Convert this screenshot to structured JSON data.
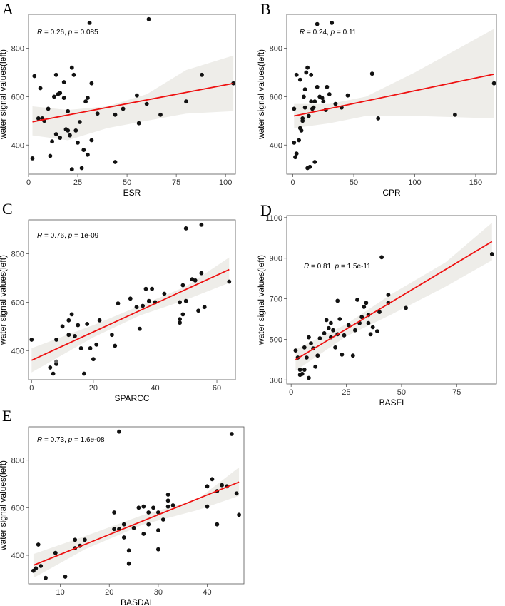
{
  "colors": {
    "line": "#ee1111",
    "band": "#eeede9",
    "point": "#111111",
    "point_overlap": "#666666",
    "axis": "#555555"
  },
  "chart_data": [
    {
      "panel": "A",
      "type": "scatter",
      "xlabel": "ESR",
      "ylabel": "water signal values(left)",
      "r_label": "R",
      "r_value": "0.26",
      "p_label": "p",
      "p_value": "0.085",
      "xlim": [
        0,
        105
      ],
      "ylim": [
        280,
        940
      ],
      "xticks": [
        0,
        25,
        50,
        75,
        100
      ],
      "xtick_labels": [
        "0",
        "25",
        "50",
        "75",
        "100"
      ],
      "yticks": [
        400,
        600,
        800
      ],
      "ytick_labels": [
        "400",
        "600",
        "800"
      ],
      "fit": {
        "x": [
          2,
          104
        ],
        "y": [
          496,
          655
        ]
      },
      "band_upper": [
        [
          2,
          560
        ],
        [
          20,
          545
        ],
        [
          40,
          560
        ],
        [
          60,
          610
        ],
        [
          80,
          710
        ],
        [
          104,
          770
        ]
      ],
      "band_lower": [
        [
          104,
          540
        ],
        [
          80,
          530
        ],
        [
          60,
          500
        ],
        [
          40,
          470
        ],
        [
          20,
          420
        ],
        [
          2,
          440
        ]
      ],
      "points": [
        [
          2,
          345
        ],
        [
          3,
          685
        ],
        [
          5,
          510
        ],
        [
          6,
          635
        ],
        [
          7,
          510
        ],
        [
          8,
          500
        ],
        [
          10,
          550
        ],
        [
          11,
          355
        ],
        [
          12,
          415
        ],
        [
          13,
          600
        ],
        [
          14,
          690
        ],
        [
          14,
          445
        ],
        [
          15,
          610
        ],
        [
          16,
          615
        ],
        [
          16,
          430
        ],
        [
          18,
          595
        ],
        [
          18,
          660
        ],
        [
          19,
          465
        ],
        [
          20,
          460
        ],
        [
          20,
          540
        ],
        [
          21,
          440
        ],
        [
          22,
          300
        ],
        [
          22,
          720
        ],
        [
          23,
          690
        ],
        [
          24,
          460
        ],
        [
          25,
          410
        ],
        [
          26,
          495
        ],
        [
          27,
          305
        ],
        [
          28,
          380
        ],
        [
          29,
          580
        ],
        [
          30,
          360
        ],
        [
          30,
          595
        ],
        [
          31,
          905
        ],
        [
          32,
          420
        ],
        [
          32,
          655
        ],
        [
          35,
          530
        ],
        [
          44,
          330
        ],
        [
          44,
          525
        ],
        [
          48,
          550
        ],
        [
          55,
          605
        ],
        [
          56,
          490
        ],
        [
          60,
          570
        ],
        [
          61,
          920
        ],
        [
          67,
          525
        ],
        [
          80,
          580
        ],
        [
          88,
          690
        ],
        [
          104,
          655
        ]
      ]
    },
    {
      "panel": "B",
      "type": "scatter",
      "xlabel": "CPR",
      "ylabel": "water signal values(left)",
      "r_label": "R",
      "r_value": "0.24",
      "p_label": "p",
      "p_value": "0.11",
      "xlim": [
        -5,
        167
      ],
      "ylim": [
        280,
        940
      ],
      "xticks": [
        0,
        50,
        100,
        150
      ],
      "xtick_labels": [
        "0",
        "50",
        "100",
        "150"
      ],
      "yticks": [
        400,
        600,
        800
      ],
      "ytick_labels": [
        "400",
        "600",
        "800"
      ],
      "fit": {
        "x": [
          1,
          165
        ],
        "y": [
          520,
          693
        ]
      },
      "band_upper": [
        [
          1,
          570
        ],
        [
          30,
          570
        ],
        [
          60,
          600
        ],
        [
          100,
          700
        ],
        [
          165,
          880
        ]
      ],
      "band_lower": [
        [
          165,
          510
        ],
        [
          100,
          520
        ],
        [
          60,
          520
        ],
        [
          30,
          490
        ],
        [
          1,
          470
        ]
      ],
      "points": [
        [
          1,
          550
        ],
        [
          1,
          410
        ],
        [
          2,
          350
        ],
        [
          3,
          365
        ],
        [
          3,
          690
        ],
        [
          5,
          420
        ],
        [
          6,
          470
        ],
        [
          6,
          670
        ],
        [
          7,
          460
        ],
        [
          8,
          500
        ],
        [
          8,
          510
        ],
        [
          9,
          600
        ],
        [
          10,
          630
        ],
        [
          10,
          555
        ],
        [
          11,
          700
        ],
        [
          12,
          720
        ],
        [
          12,
          305
        ],
        [
          13,
          520
        ],
        [
          14,
          310
        ],
        [
          15,
          580
        ],
        [
          15,
          690
        ],
        [
          16,
          550
        ],
        [
          17,
          555
        ],
        [
          18,
          330
        ],
        [
          18,
          580
        ],
        [
          20,
          900
        ],
        [
          20,
          640
        ],
        [
          22,
          600
        ],
        [
          24,
          595
        ],
        [
          25,
          580
        ],
        [
          27,
          545
        ],
        [
          28,
          640
        ],
        [
          30,
          610
        ],
        [
          32,
          905
        ],
        [
          35,
          570
        ],
        [
          40,
          555
        ],
        [
          45,
          605
        ],
        [
          65,
          695
        ],
        [
          70,
          510
        ],
        [
          133,
          525
        ],
        [
          165,
          655
        ]
      ]
    },
    {
      "panel": "C",
      "type": "scatter",
      "xlabel": "SPARCC",
      "ylabel": "water signal values(left)",
      "r_label": "R",
      "r_value": "0.76",
      "p_label": "p",
      "p_value": "1e-09",
      "xlim": [
        -1,
        66
      ],
      "ylim": [
        280,
        940
      ],
      "xticks": [
        0,
        20,
        40,
        60
      ],
      "xtick_labels": [
        "0",
        "20",
        "40",
        "60"
      ],
      "yticks": [
        400,
        600,
        800
      ],
      "ytick_labels": [
        "400",
        "600",
        "800"
      ],
      "fit": {
        "x": [
          0,
          64
        ],
        "y": [
          360,
          735
        ]
      },
      "band_upper": [
        [
          0,
          410
        ],
        [
          20,
          505
        ],
        [
          35,
          585
        ],
        [
          50,
          665
        ],
        [
          64,
          785
        ]
      ],
      "band_lower": [
        [
          64,
          680
        ],
        [
          50,
          610
        ],
        [
          35,
          545
        ],
        [
          20,
          455
        ],
        [
          0,
          310
        ]
      ],
      "points": [
        [
          0,
          445
        ],
        [
          6,
          330
        ],
        [
          7,
          305
        ],
        [
          8,
          345
        ],
        [
          8,
          355
        ],
        [
          8,
          445
        ],
        [
          10,
          500
        ],
        [
          12,
          465
        ],
        [
          12,
          525
        ],
        [
          13,
          550
        ],
        [
          14,
          460
        ],
        [
          15,
          505
        ],
        [
          16,
          410
        ],
        [
          17,
          305
        ],
        [
          18,
          510
        ],
        [
          19,
          410
        ],
        [
          20,
          365
        ],
        [
          21,
          425
        ],
        [
          22,
          525
        ],
        [
          26,
          465
        ],
        [
          27,
          420
        ],
        [
          28,
          595
        ],
        [
          32,
          615
        ],
        [
          34,
          580
        ],
        [
          35,
          490
        ],
        [
          36,
          585
        ],
        [
          37,
          655
        ],
        [
          38,
          605
        ],
        [
          39,
          655
        ],
        [
          40,
          600
        ],
        [
          43,
          635
        ],
        [
          48,
          515
        ],
        [
          48,
          530
        ],
        [
          48,
          600
        ],
        [
          49,
          670
        ],
        [
          49,
          550
        ],
        [
          50,
          605
        ],
        [
          50,
          905
        ],
        [
          52,
          695
        ],
        [
          53,
          690
        ],
        [
          54,
          565
        ],
        [
          55,
          720
        ],
        [
          55,
          920
        ],
        [
          56,
          580
        ],
        [
          64,
          685
        ]
      ]
    },
    {
      "panel": "D",
      "type": "scatter",
      "xlabel": "BASFI",
      "ylabel": "water signal values(left)",
      "r_label": "R",
      "r_value": "0.81",
      "p_label": "p",
      "p_value": "1.5e-11",
      "xlim": [
        -2,
        93
      ],
      "ylim": [
        280,
        1110
      ],
      "xticks": [
        0,
        25,
        50,
        75
      ],
      "xtick_labels": [
        "0",
        "25",
        "50",
        "75"
      ],
      "yticks": [
        300,
        500,
        700,
        900,
        1100
      ],
      "ytick_labels": [
        "300",
        "500",
        "700",
        "900",
        "1100"
      ],
      "fit": {
        "x": [
          2,
          91
        ],
        "y": [
          400,
          982
        ]
      },
      "band_upper": [
        [
          2,
          450
        ],
        [
          25,
          575
        ],
        [
          45,
          720
        ],
        [
          70,
          880
        ],
        [
          91,
          1075
        ]
      ],
      "band_lower": [
        [
          91,
          890
        ],
        [
          70,
          760
        ],
        [
          45,
          620
        ],
        [
          25,
          515
        ],
        [
          2,
          345
        ]
      ],
      "points": [
        [
          2,
          445
        ],
        [
          3,
          410
        ],
        [
          4,
          325
        ],
        [
          4,
          350
        ],
        [
          5,
          330
        ],
        [
          6,
          460
        ],
        [
          6,
          350
        ],
        [
          7,
          410
        ],
        [
          8,
          510
        ],
        [
          8,
          310
        ],
        [
          9,
          480
        ],
        [
          10,
          455
        ],
        [
          11,
          365
        ],
        [
          12,
          420
        ],
        [
          13,
          505
        ],
        [
          15,
          530
        ],
        [
          16,
          595
        ],
        [
          17,
          555
        ],
        [
          18,
          510
        ],
        [
          18,
          580
        ],
        [
          19,
          545
        ],
        [
          20,
          460
        ],
        [
          21,
          525
        ],
        [
          21,
          690
        ],
        [
          22,
          600
        ],
        [
          23,
          425
        ],
        [
          24,
          520
        ],
        [
          26,
          570
        ],
        [
          28,
          420
        ],
        [
          29,
          545
        ],
        [
          30,
          695
        ],
        [
          31,
          580
        ],
        [
          32,
          610
        ],
        [
          33,
          660
        ],
        [
          34,
          680
        ],
        [
          35,
          580
        ],
        [
          35,
          620
        ],
        [
          36,
          525
        ],
        [
          37,
          560
        ],
        [
          39,
          540
        ],
        [
          40,
          635
        ],
        [
          41,
          905
        ],
        [
          44,
          680
        ],
        [
          44,
          720
        ],
        [
          52,
          655
        ],
        [
          91,
          920
        ]
      ]
    },
    {
      "panel": "E",
      "type": "scatter",
      "xlabel": "BASDAI",
      "ylabel": "water signal values(left)",
      "r_label": "R",
      "r_value": "0.73",
      "p_label": "p",
      "p_value": "1.6e-08",
      "xlim": [
        3.5,
        47.5
      ],
      "ylim": [
        280,
        940
      ],
      "xticks": [
        10,
        20,
        30,
        40
      ],
      "xtick_labels": [
        "10",
        "20",
        "30",
        "40"
      ],
      "yticks": [
        400,
        600,
        800
      ],
      "ytick_labels": [
        "400",
        "600",
        "800"
      ],
      "fit": {
        "x": [
          4.5,
          46.5
        ],
        "y": [
          358,
          708
        ]
      },
      "band_upper": [
        [
          4.5,
          405
        ],
        [
          15,
          480
        ],
        [
          27,
          570
        ],
        [
          38,
          635
        ],
        [
          46.5,
          770
        ]
      ],
      "band_lower": [
        [
          46.5,
          650
        ],
        [
          38,
          590
        ],
        [
          27,
          530
        ],
        [
          15,
          425
        ],
        [
          4.5,
          305
        ]
      ],
      "points": [
        [
          4.5,
          335
        ],
        [
          5,
          345
        ],
        [
          5.5,
          445
        ],
        [
          6,
          355
        ],
        [
          7,
          305
        ],
        [
          9,
          410
        ],
        [
          11,
          310
        ],
        [
          13,
          465
        ],
        [
          13,
          430
        ],
        [
          14,
          440
        ],
        [
          15,
          465
        ],
        [
          21,
          580
        ],
        [
          21,
          510
        ],
        [
          22,
          920
        ],
        [
          22,
          510
        ],
        [
          23,
          530
        ],
        [
          23,
          475
        ],
        [
          24,
          420
        ],
        [
          24,
          365
        ],
        [
          25,
          515
        ],
        [
          26,
          600
        ],
        [
          27,
          605
        ],
        [
          27,
          490
        ],
        [
          28,
          530
        ],
        [
          28,
          580
        ],
        [
          29,
          600
        ],
        [
          30,
          425
        ],
        [
          30,
          505
        ],
        [
          30,
          580
        ],
        [
          31,
          550
        ],
        [
          32,
          605
        ],
        [
          32,
          655
        ],
        [
          32,
          630
        ],
        [
          33,
          610
        ],
        [
          40,
          605
        ],
        [
          40,
          690
        ],
        [
          41,
          720
        ],
        [
          42,
          530
        ],
        [
          42,
          670
        ],
        [
          43,
          695
        ],
        [
          44,
          690
        ],
        [
          45,
          910
        ],
        [
          46,
          660
        ],
        [
          46.5,
          570
        ]
      ]
    }
  ]
}
